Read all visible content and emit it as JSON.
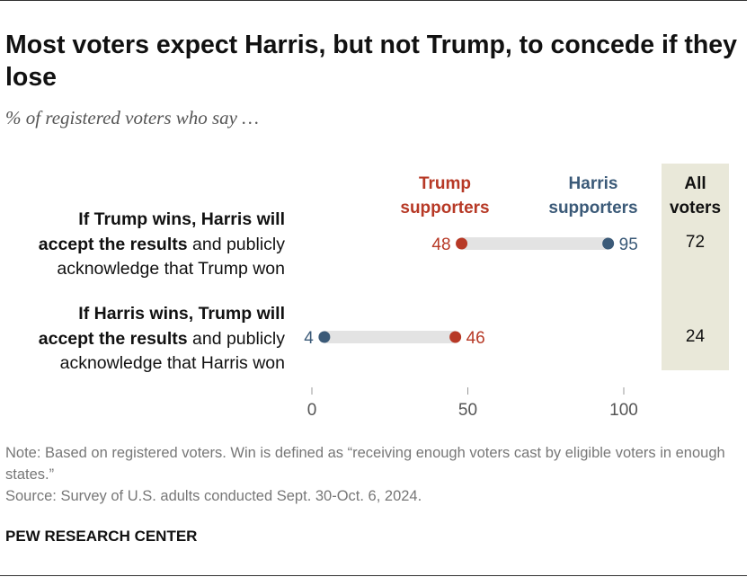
{
  "title": "Most voters expect Harris, but not Trump, to concede if they lose",
  "subtitle": "% of registered voters who say …",
  "headers": {
    "trump_line1": "Trump",
    "trump_line2": "supporters",
    "harris_line1": "Harris",
    "harris_line2": "supporters",
    "all_line1": "All",
    "all_line2": "voters"
  },
  "colors": {
    "trump": "#b73926",
    "harris": "#3b5a78",
    "bar": "#e3e3e3",
    "all_voters_bg": "#e9e8d9",
    "axis": "#999999"
  },
  "rows": [
    {
      "line1": "If Trump wins, Harris will",
      "line2_bold": "accept the results",
      "line2_rest": " and publicly",
      "line3": "acknowledge that Trump won"
    },
    {
      "line1": "If Harris wins, Trump will",
      "line2_bold": "accept the results",
      "line2_rest": " and publicly",
      "line3": "acknowledge that Harris won"
    }
  ],
  "chart_data": {
    "type": "dot",
    "categories": [
      "If Trump wins, Harris will accept the results and publicly acknowledge that Trump won",
      "If Harris wins, Trump will accept the results and publicly acknowledge that Harris won"
    ],
    "series": [
      {
        "name": "Trump supporters",
        "values": [
          48,
          46
        ]
      },
      {
        "name": "Harris supporters",
        "values": [
          95,
          4
        ]
      }
    ],
    "all_voters": {
      "name": "All voters",
      "values": [
        72,
        24
      ]
    },
    "xlim": [
      0,
      100
    ],
    "xticks": [
      0,
      50,
      100
    ],
    "grid": false
  },
  "note": "Note: Based on registered voters. Win is defined as “receiving enough voters cast by eligible voters in enough states.”",
  "source": "Source: Survey of U.S. adults conducted Sept. 30-Oct. 6, 2024.",
  "brand": "PEW RESEARCH CENTER"
}
